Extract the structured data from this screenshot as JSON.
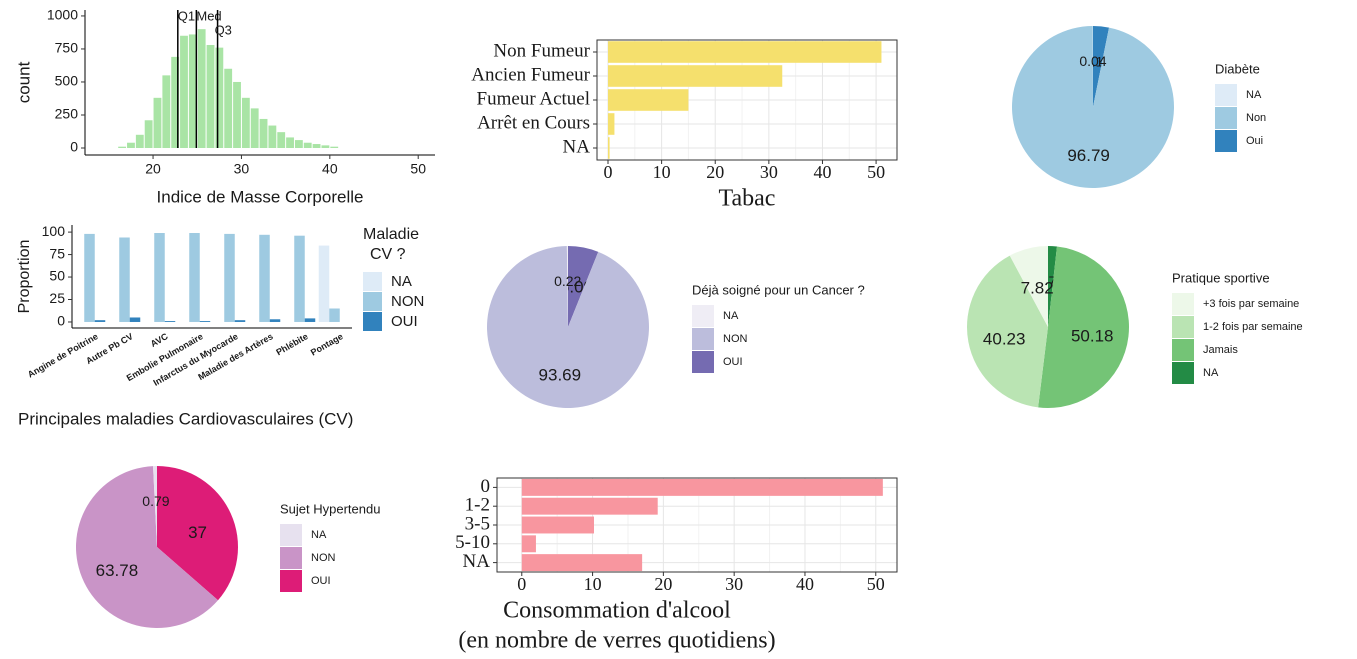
{
  "chart_data": [
    {
      "type": "histogram",
      "xlabel": "Indice de Masse Corporelle",
      "ylabel": "count",
      "bins": [
        16,
        17,
        18,
        19,
        20,
        21,
        22,
        23,
        24,
        25,
        26,
        27,
        28,
        29,
        30,
        31,
        32,
        33,
        34,
        35,
        36,
        37,
        38,
        39,
        40,
        41
      ],
      "values": [
        10,
        40,
        100,
        210,
        380,
        550,
        690,
        850,
        860,
        900,
        780,
        760,
        600,
        500,
        380,
        300,
        220,
        170,
        120,
        80,
        60,
        40,
        30,
        20,
        10
      ],
      "color": "#a9e4a5",
      "xlim": [
        12.3,
        51.9
      ],
      "xticks": [
        20,
        30,
        40,
        50
      ],
      "ylim": [
        -53,
        1045
      ],
      "yticks": [
        0,
        250,
        500,
        750,
        1000
      ],
      "annotations": [
        {
          "label": "Q1",
          "value": 22.8
        },
        {
          "label": "Med",
          "value": 24.9
        },
        {
          "label": "Q3",
          "value": 27.3
        }
      ]
    },
    {
      "type": "hbar",
      "xlabel": [
        "Tabac"
      ],
      "categories": [
        "Non Fumeur",
        "Ancien Fumeur",
        "Fumeur Actuel",
        "Arrêt en Cours",
        "NA"
      ],
      "values": [
        51,
        32.5,
        15,
        1.2,
        0.3
      ],
      "color": "#f5e06d",
      "xlim": [
        -2.05,
        53.9
      ],
      "xticks": [
        0,
        10,
        20,
        30,
        40,
        50
      ],
      "grid": true
    },
    {
      "type": "pie",
      "legend_title": [
        "Diabète"
      ],
      "categories": [
        "NA",
        "Non",
        "Oui"
      ],
      "values": [
        0.04,
        96.79,
        3.17
      ],
      "colors": [
        "#deebf7",
        "#9ecae1",
        "#3182bd"
      ],
      "label_color": "#2a4f80"
    },
    {
      "type": "groupbar",
      "title": "Principales maladies Cardiovasculaires (CV)",
      "ylabel": "Proportion",
      "legend_title": [
        "Maladie",
        "CV ?"
      ],
      "categories": [
        "Angine de Poitrine",
        "Autre Pb CV",
        "AVC",
        "Embolie Pulmonaire",
        "Infarctus du Myocarde",
        "Maladie des Artères",
        "Phlébite",
        "Pontage"
      ],
      "series": [
        {
          "name": "NA",
          "color": "#deebf7",
          "values": [
            null,
            null,
            null,
            null,
            null,
            null,
            null,
            85
          ]
        },
        {
          "name": "NON",
          "color": "#9ecae1",
          "values": [
            98,
            94,
            99,
            99,
            98,
            97,
            96,
            15
          ]
        },
        {
          "name": "OUI",
          "color": "#3182bd",
          "values": [
            2,
            5,
            1,
            1,
            2,
            3,
            4,
            null
          ]
        }
      ],
      "ylim": [
        -6.7,
        107.9
      ],
      "yticks": [
        0,
        25,
        50,
        75,
        100
      ]
    },
    {
      "type": "pie",
      "legend_title": [
        "Déjà soigné pour un Cancer ?"
      ],
      "categories": [
        "NA",
        "NON",
        "OUI"
      ],
      "values": [
        0.22,
        93.69,
        6.09
      ],
      "colors": [
        "#efedf5",
        "#bcbddc",
        "#756bb1"
      ],
      "label_color": "#6b3d6e"
    },
    {
      "type": "pie",
      "legend_title": [
        "Pratique sportive"
      ],
      "categories": [
        "+3 fois par semaine",
        "1-2 fois par semaine",
        "Jamais",
        "NA"
      ],
      "values": [
        7.82,
        40.23,
        50.18,
        1.77
      ],
      "colors": [
        "#edf8e9",
        "#bae4b3",
        "#74c476",
        "#238b45"
      ],
      "label_color": "#1a1a1a"
    },
    {
      "type": "pie",
      "legend_title": [
        "Sujet Hypertendu"
      ],
      "categories": [
        "NA",
        "NON",
        "OUI"
      ],
      "values": [
        0.79,
        63.78,
        37
      ],
      "colors": [
        "#e7e1ef",
        "#c994c7",
        "#dd1c77"
      ],
      "label_color": "#ffffff"
    },
    {
      "type": "hbar",
      "xlabel": [
        "Consommation d'alcool",
        "(en nombre de verres quotidiens)"
      ],
      "categories": [
        "0",
        "1-2",
        "3-5",
        "5-10",
        "NA"
      ],
      "values": [
        51,
        19.2,
        10.2,
        2,
        17
      ],
      "color": "#f8969f",
      "xlim": [
        -3.5,
        53
      ],
      "xticks": [
        0,
        10,
        20,
        30,
        40,
        50
      ],
      "grid": true
    }
  ]
}
